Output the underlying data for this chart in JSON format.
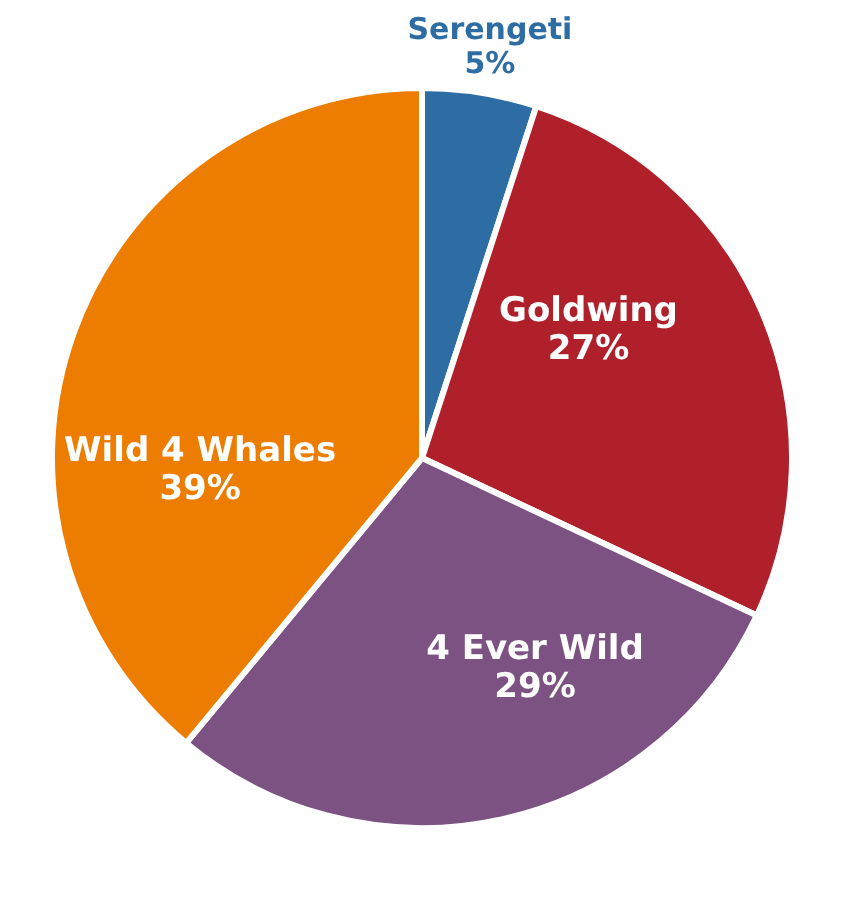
{
  "chart_data": {
    "type": "pie",
    "categories": [
      "Serengeti",
      "Goldwing",
      "4 Ever Wild",
      "Wild 4 Whales"
    ],
    "values": [
      5,
      27,
      29,
      39
    ],
    "value_labels": [
      "5%",
      "27%",
      "29%",
      "39%"
    ],
    "colors": [
      "#2e6da4",
      "#b0202a",
      "#7b5282",
      "#ec7d00"
    ]
  }
}
